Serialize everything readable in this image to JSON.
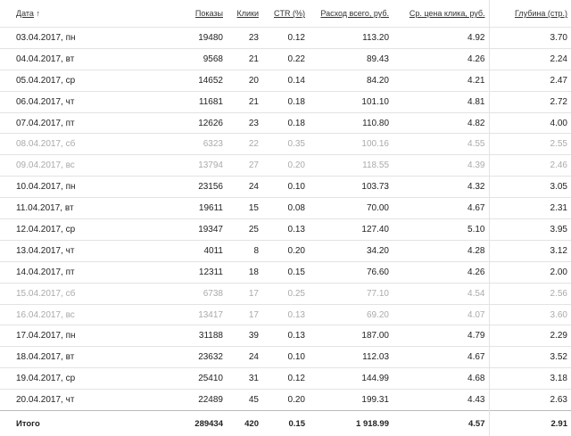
{
  "headers": {
    "date": "Дата",
    "sort_arrow": "↑",
    "shows": "Показы",
    "clicks": "Клики",
    "ctr": "CTR (%)",
    "cost": "Расход всего, руб.",
    "cpc": "Ср. цена клика, руб.",
    "depth": "Глубина (стр.)"
  },
  "rows": [
    {
      "date": "03.04.2017, пн",
      "shows": "19480",
      "clicks": "23",
      "ctr": "0.12",
      "cost": "113.20",
      "cpc": "4.92",
      "depth": "3.70",
      "weekend": false
    },
    {
      "date": "04.04.2017, вт",
      "shows": "9568",
      "clicks": "21",
      "ctr": "0.22",
      "cost": "89.43",
      "cpc": "4.26",
      "depth": "2.24",
      "weekend": false
    },
    {
      "date": "05.04.2017, ср",
      "shows": "14652",
      "clicks": "20",
      "ctr": "0.14",
      "cost": "84.20",
      "cpc": "4.21",
      "depth": "2.47",
      "weekend": false
    },
    {
      "date": "06.04.2017, чт",
      "shows": "11681",
      "clicks": "21",
      "ctr": "0.18",
      "cost": "101.10",
      "cpc": "4.81",
      "depth": "2.72",
      "weekend": false
    },
    {
      "date": "07.04.2017, пт",
      "shows": "12626",
      "clicks": "23",
      "ctr": "0.18",
      "cost": "110.80",
      "cpc": "4.82",
      "depth": "4.00",
      "weekend": false
    },
    {
      "date": "08.04.2017, сб",
      "shows": "6323",
      "clicks": "22",
      "ctr": "0.35",
      "cost": "100.16",
      "cpc": "4.55",
      "depth": "2.55",
      "weekend": true
    },
    {
      "date": "09.04.2017, вс",
      "shows": "13794",
      "clicks": "27",
      "ctr": "0.20",
      "cost": "118.55",
      "cpc": "4.39",
      "depth": "2.46",
      "weekend": true
    },
    {
      "date": "10.04.2017, пн",
      "shows": "23156",
      "clicks": "24",
      "ctr": "0.10",
      "cost": "103.73",
      "cpc": "4.32",
      "depth": "3.05",
      "weekend": false
    },
    {
      "date": "11.04.2017, вт",
      "shows": "19611",
      "clicks": "15",
      "ctr": "0.08",
      "cost": "70.00",
      "cpc": "4.67",
      "depth": "2.31",
      "weekend": false
    },
    {
      "date": "12.04.2017, ср",
      "shows": "19347",
      "clicks": "25",
      "ctr": "0.13",
      "cost": "127.40",
      "cpc": "5.10",
      "depth": "3.95",
      "weekend": false
    },
    {
      "date": "13.04.2017, чт",
      "shows": "4011",
      "clicks": "8",
      "ctr": "0.20",
      "cost": "34.20",
      "cpc": "4.28",
      "depth": "3.12",
      "weekend": false
    },
    {
      "date": "14.04.2017, пт",
      "shows": "12311",
      "clicks": "18",
      "ctr": "0.15",
      "cost": "76.60",
      "cpc": "4.26",
      "depth": "2.00",
      "weekend": false
    },
    {
      "date": "15.04.2017, сб",
      "shows": "6738",
      "clicks": "17",
      "ctr": "0.25",
      "cost": "77.10",
      "cpc": "4.54",
      "depth": "2.56",
      "weekend": true
    },
    {
      "date": "16.04.2017, вс",
      "shows": "13417",
      "clicks": "17",
      "ctr": "0.13",
      "cost": "69.20",
      "cpc": "4.07",
      "depth": "3.60",
      "weekend": true
    },
    {
      "date": "17.04.2017, пн",
      "shows": "31188",
      "clicks": "39",
      "ctr": "0.13",
      "cost": "187.00",
      "cpc": "4.79",
      "depth": "2.29",
      "weekend": false
    },
    {
      "date": "18.04.2017, вт",
      "shows": "23632",
      "clicks": "24",
      "ctr": "0.10",
      "cost": "112.03",
      "cpc": "4.67",
      "depth": "3.52",
      "weekend": false
    },
    {
      "date": "19.04.2017, ср",
      "shows": "25410",
      "clicks": "31",
      "ctr": "0.12",
      "cost": "144.99",
      "cpc": "4.68",
      "depth": "3.18",
      "weekend": false
    },
    {
      "date": "20.04.2017, чт",
      "shows": "22489",
      "clicks": "45",
      "ctr": "0.20",
      "cost": "199.31",
      "cpc": "4.43",
      "depth": "2.63",
      "weekend": false
    }
  ],
  "total": {
    "label": "Итого",
    "shows": "289434",
    "clicks": "420",
    "ctr": "0.15",
    "cost": "1 918.99",
    "cpc": "4.57",
    "depth": "2.91"
  }
}
